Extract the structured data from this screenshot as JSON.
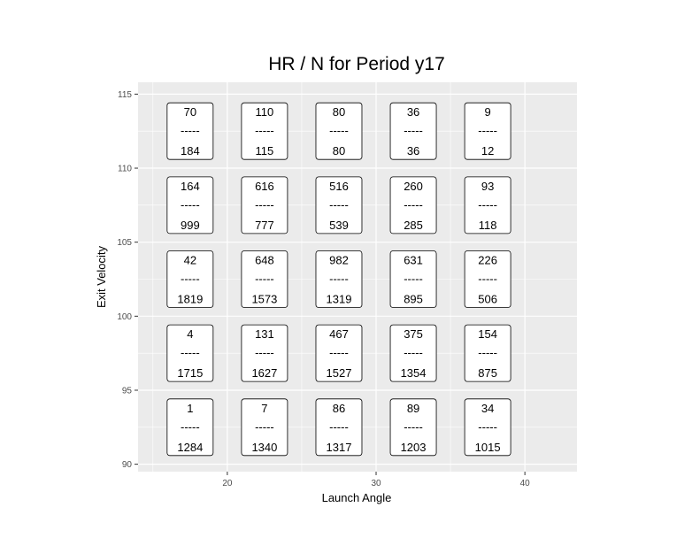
{
  "chart_data": {
    "type": "table",
    "title": "HR / N for Period y17",
    "xlabel": "Launch Angle",
    "ylabel": "Exit Velocity",
    "xlim": [
      14,
      43.5
    ],
    "ylim": [
      89.5,
      115.8
    ],
    "x_ticks": [
      20,
      30,
      40
    ],
    "y_ticks": [
      90,
      95,
      100,
      105,
      110,
      115
    ],
    "x_ticks_labels": [
      "20",
      "30",
      "40"
    ],
    "y_ticks_labels": [
      "90",
      "95",
      "100",
      "105",
      "110",
      "115"
    ],
    "separator": "-----",
    "grid": true,
    "cells": [
      {
        "x": 17.5,
        "y": 92.5,
        "hr": "1",
        "n": "1284"
      },
      {
        "x": 22.5,
        "y": 92.5,
        "hr": "7",
        "n": "1340"
      },
      {
        "x": 27.5,
        "y": 92.5,
        "hr": "86",
        "n": "1317"
      },
      {
        "x": 32.5,
        "y": 92.5,
        "hr": "89",
        "n": "1203"
      },
      {
        "x": 37.5,
        "y": 92.5,
        "hr": "34",
        "n": "1015"
      },
      {
        "x": 17.5,
        "y": 97.5,
        "hr": "4",
        "n": "1715"
      },
      {
        "x": 22.5,
        "y": 97.5,
        "hr": "131",
        "n": "1627"
      },
      {
        "x": 27.5,
        "y": 97.5,
        "hr": "467",
        "n": "1527"
      },
      {
        "x": 32.5,
        "y": 97.5,
        "hr": "375",
        "n": "1354"
      },
      {
        "x": 37.5,
        "y": 97.5,
        "hr": "154",
        "n": "875"
      },
      {
        "x": 17.5,
        "y": 102.5,
        "hr": "42",
        "n": "1819"
      },
      {
        "x": 22.5,
        "y": 102.5,
        "hr": "648",
        "n": "1573"
      },
      {
        "x": 27.5,
        "y": 102.5,
        "hr": "982",
        "n": "1319"
      },
      {
        "x": 32.5,
        "y": 102.5,
        "hr": "631",
        "n": "895"
      },
      {
        "x": 37.5,
        "y": 102.5,
        "hr": "226",
        "n": "506"
      },
      {
        "x": 17.5,
        "y": 107.5,
        "hr": "164",
        "n": "999"
      },
      {
        "x": 22.5,
        "y": 107.5,
        "hr": "616",
        "n": "777"
      },
      {
        "x": 27.5,
        "y": 107.5,
        "hr": "516",
        "n": "539"
      },
      {
        "x": 32.5,
        "y": 107.5,
        "hr": "260",
        "n": "285"
      },
      {
        "x": 37.5,
        "y": 107.5,
        "hr": "93",
        "n": "118"
      },
      {
        "x": 17.5,
        "y": 112.5,
        "hr": "70",
        "n": "184"
      },
      {
        "x": 22.5,
        "y": 112.5,
        "hr": "110",
        "n": "115"
      },
      {
        "x": 27.5,
        "y": 112.5,
        "hr": "80",
        "n": "80"
      },
      {
        "x": 32.5,
        "y": 112.5,
        "hr": "36",
        "n": "36"
      },
      {
        "x": 37.5,
        "y": 112.5,
        "hr": "9",
        "n": "12"
      }
    ],
    "colors": {
      "panel_bg": "#ebebeb",
      "grid": "#ffffff",
      "label_fill": "#ffffff",
      "label_border": "#000000"
    }
  }
}
